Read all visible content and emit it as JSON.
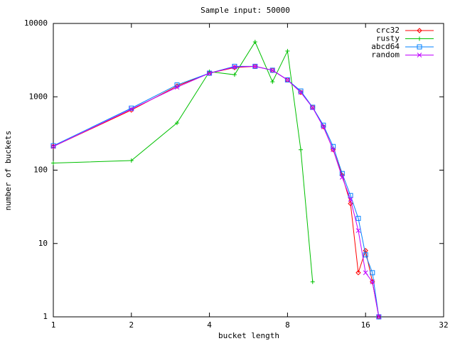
{
  "chart_data": {
    "type": "line",
    "title": "Sample input: 50000",
    "x_label": "bucket length",
    "y_label": "number of buckets",
    "x": [
      1,
      2,
      3,
      4,
      5,
      6,
      7,
      8,
      9,
      10,
      11,
      12,
      13,
      14,
      15,
      16,
      17,
      18
    ],
    "series": [
      {
        "name": "crc32",
        "color": "#ff0000",
        "marker": "diamond",
        "values": [
          210,
          660,
          1400,
          2100,
          2500,
          2600,
          2300,
          1700,
          1150,
          720,
          390,
          190,
          85,
          35,
          4,
          8,
          3,
          1
        ]
      },
      {
        "name": "rusty",
        "color": "#00c000",
        "marker": "plus",
        "values": [
          125,
          135,
          440,
          2200,
          2000,
          5600,
          1600,
          4200,
          190,
          3,
          null,
          null,
          null,
          null,
          null,
          null,
          null,
          null
        ]
      },
      {
        "name": "abcd64",
        "color": "#0080ff",
        "marker": "square",
        "values": [
          215,
          700,
          1450,
          2100,
          2600,
          2600,
          2300,
          1700,
          1200,
          720,
          410,
          210,
          90,
          45,
          22,
          7,
          4,
          1
        ]
      },
      {
        "name": "random",
        "color": "#c000ff",
        "marker": "cross",
        "values": [
          210,
          680,
          1350,
          2100,
          2550,
          2600,
          2300,
          1700,
          1150,
          710,
          390,
          190,
          80,
          40,
          15,
          4,
          3,
          1
        ]
      }
    ],
    "xscale": "log",
    "yscale": "log",
    "xlim": [
      1,
      32
    ],
    "ylim": [
      1,
      10000
    ],
    "xticks": [
      1,
      2,
      4,
      8,
      16,
      32
    ],
    "yticks": [
      1,
      10,
      100,
      1000,
      10000
    ],
    "legend": "upper right"
  }
}
